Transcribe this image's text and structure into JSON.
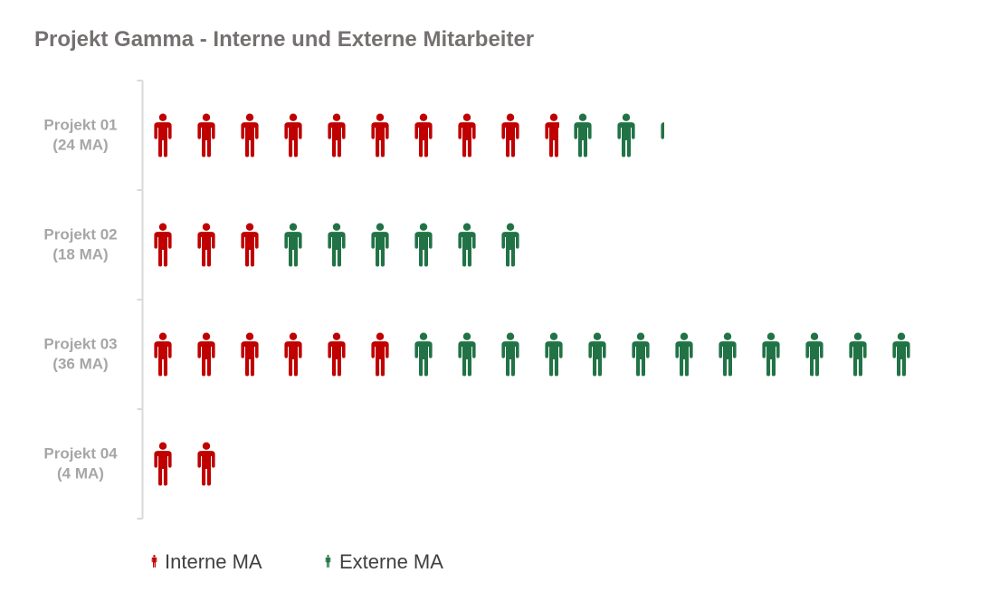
{
  "chart_data": {
    "type": "bar",
    "subtype": "pictograph-stacked-horizontal",
    "title": "Projekt Gamma - Interne und Externe Mitarbeiter",
    "categories": [
      {
        "line1": "Projekt 01",
        "line2": "(24 MA)"
      },
      {
        "line1": "Projekt 02",
        "line2": "(18 MA)"
      },
      {
        "line1": "Projekt 03",
        "line2": "(36 MA)"
      },
      {
        "line1": "Projekt 04",
        "line2": "(4 MA)"
      }
    ],
    "series": [
      {
        "name": "Interne MA",
        "color": "#c00000",
        "values": [
          19.5,
          6,
          12,
          4
        ]
      },
      {
        "name": "Externe MA",
        "color": "#217346",
        "values": [
          4.5,
          12,
          24,
          0
        ]
      }
    ],
    "unit_per_icon": 2,
    "icon": "person-icon",
    "legend_position": "bottom",
    "xlim": [
      0,
      36
    ],
    "grid": false
  }
}
